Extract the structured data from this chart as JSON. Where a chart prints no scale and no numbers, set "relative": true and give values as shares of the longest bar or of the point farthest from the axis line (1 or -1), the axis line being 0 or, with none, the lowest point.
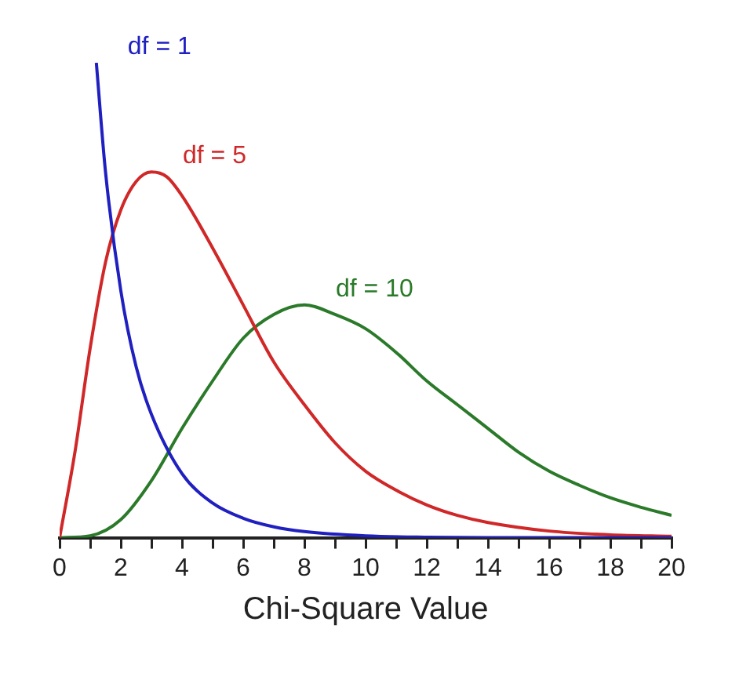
{
  "chart_data": {
    "type": "line",
    "xlabel": "Chi-Square Value",
    "relative": true,
    "xlim": [
      0,
      20
    ],
    "xticks": [
      0,
      {
        "value": 1,
        "label": null
      },
      2,
      {
        "value": 3,
        "label": null
      },
      4,
      {
        "value": 5,
        "label": null
      },
      6,
      {
        "value": 7,
        "label": null
      },
      8,
      {
        "value": 9,
        "label": null
      },
      10,
      {
        "value": 11,
        "label": null
      },
      12,
      {
        "value": 13,
        "label": null
      },
      14,
      {
        "value": 15,
        "label": null
      },
      16,
      {
        "value": 17,
        "label": null
      },
      18,
      {
        "value": 19,
        "label": null
      },
      20
    ],
    "series": [
      {
        "name": "df = 1",
        "color": "#2020c0",
        "x": [
          1.2,
          1.5,
          2,
          2.5,
          3,
          4,
          5,
          6,
          7,
          8,
          10,
          12,
          14,
          16,
          18,
          20
        ],
        "values": [
          1,
          0.77,
          0.52,
          0.36,
          0.26,
          0.135,
          0.073,
          0.041,
          0.023,
          0.013,
          0.004,
          0.001,
          0,
          0,
          0,
          0
        ]
      },
      {
        "name": "df = 5",
        "color": "#d02828",
        "x": [
          0,
          0.5,
          1,
          1.5,
          2,
          2.5,
          3,
          3.5,
          4,
          5,
          6,
          7,
          8,
          9,
          10,
          11,
          12,
          13,
          14,
          16,
          18,
          20
        ],
        "values": [
          0,
          0.18,
          0.4,
          0.58,
          0.69,
          0.75,
          0.77,
          0.76,
          0.72,
          0.61,
          0.49,
          0.37,
          0.28,
          0.2,
          0.14,
          0.1,
          0.069,
          0.047,
          0.032,
          0.014,
          0.006,
          0.003
        ]
      },
      {
        "name": "df = 10",
        "color": "#2a7a2a",
        "x": [
          0,
          1,
          2,
          3,
          4,
          5,
          6,
          7,
          8,
          9,
          10,
          11,
          12,
          13,
          14,
          15,
          16,
          17,
          18,
          19,
          20
        ],
        "values": [
          0,
          0.004,
          0.038,
          0.12,
          0.23,
          0.33,
          0.42,
          0.47,
          0.49,
          0.47,
          0.44,
          0.39,
          0.33,
          0.28,
          0.23,
          0.18,
          0.14,
          0.11,
          0.084,
          0.064,
          0.047
        ]
      }
    ]
  }
}
